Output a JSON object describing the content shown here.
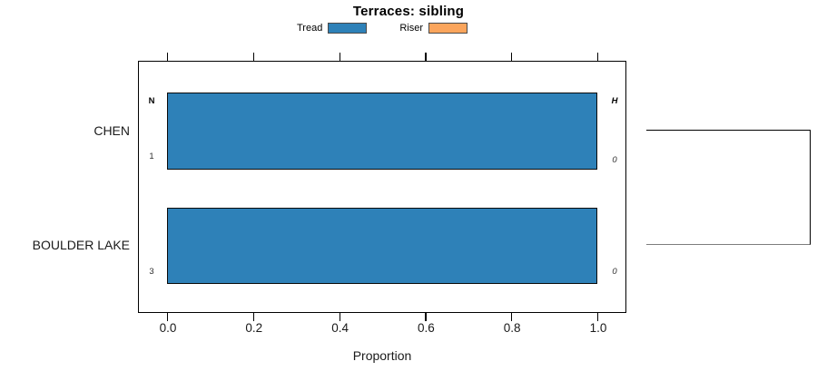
{
  "chart_data": {
    "type": "bar",
    "orientation": "horizontal",
    "title": "Terraces: sibling",
    "xlabel": "Proportion",
    "xlim": [
      0,
      1
    ],
    "x_ticks": [
      "0.0",
      "0.2",
      "0.4",
      "0.6",
      "0.8",
      "1.0"
    ],
    "x_tick_values": [
      0,
      0.2,
      0.4,
      0.6,
      0.8,
      1.0
    ],
    "categories": [
      "CHEN",
      "BOULDER LAKE"
    ],
    "series": [
      {
        "name": "Tread",
        "color": "#2e81b8",
        "values": [
          1.0,
          1.0
        ]
      },
      {
        "name": "Riser",
        "color": "#fba55c",
        "values": [
          0.0,
          0.0
        ]
      }
    ],
    "row_annotations": [
      {
        "category": "CHEN",
        "left_header": "N",
        "left_value": "1",
        "right_header": "H",
        "right_value": "0"
      },
      {
        "category": "BOULDER LAKE",
        "left_header": "",
        "left_value": "3",
        "right_header": "",
        "right_value": "0"
      }
    ],
    "legend_position": "top-center",
    "grid": false,
    "ticks_mirrored_top": true,
    "sibling_bracket_links": [
      "CHEN",
      "BOULDER LAKE"
    ],
    "colors": {
      "bar_border": "#0a0a0a",
      "plot_border": "#000000"
    }
  }
}
